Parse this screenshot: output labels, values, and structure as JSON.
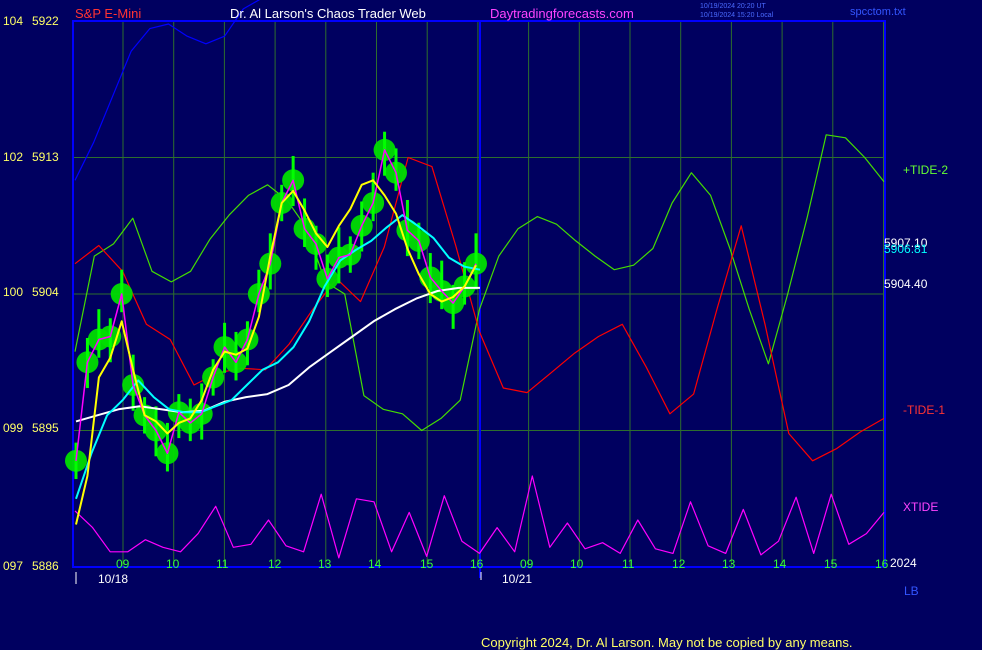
{
  "header": {
    "instrument": "S&P E-Mini",
    "title": "Dr. Al Larson's Chaos Trader Web",
    "site": "Daytradingforecasts.com",
    "stamp_ut": "10/19/2024 20:20 UT",
    "stamp_local": "10/19/2024 15:20 Local",
    "file": "spcctom.txt"
  },
  "footer": {
    "copyright": "Copyright 2024, Dr. Al Larson. May not be copied by any means."
  },
  "chart_data": {
    "type": "line",
    "y_left": [
      {
        "a": "104",
        "b": "5922"
      },
      {
        "a": "102",
        "b": "5913"
      },
      {
        "a": "100",
        "b": "5904"
      },
      {
        "a": "099",
        "b": "5895"
      },
      {
        "a": "097",
        "b": "5886"
      }
    ],
    "ylim": [
      5886,
      5922
    ],
    "x_ticks": [
      "09",
      "10",
      "11",
      "12",
      "13",
      "14",
      "15",
      "16",
      "09",
      "10",
      "11",
      "12",
      "13",
      "14",
      "15",
      "16"
    ],
    "date_labels": [
      "10/18",
      "10/21"
    ],
    "year_label": "2024",
    "right_values": [
      "5907.10",
      "5906.81",
      "5904.40"
    ],
    "series_labels": [
      "+TIDE-2",
      "-TIDE-1",
      "XTIDE"
    ],
    "corner_label": "LB",
    "colors": {
      "background": "#000060",
      "plot_border": "#0000ff",
      "grid": "#2d6e2d",
      "price_bars": "#00ff00",
      "price_bubbles": "#00dd00",
      "fast_ma": "#ffff00",
      "mid_ma": "#ff00ff",
      "cyan_ma": "#00ffff",
      "slow_ma": "#ffffff",
      "tide_plus": "#44dd00",
      "tide_minus": "#ff0000",
      "xtide": "#ff00ff",
      "blue_line": "#0000ff",
      "instrument_text": "#ff3333",
      "title_text": "#ffffff",
      "site_text": "#ff44ff",
      "footer_text": "#ffff66"
    },
    "price_close": [
      5893,
      5899.5,
      5901,
      5901.2,
      5904,
      5898,
      5896,
      5895,
      5893.5,
      5896.2,
      5895.5,
      5896.1,
      5898.5,
      5900.5,
      5899.5,
      5901,
      5904,
      5906,
      5910,
      5911.5,
      5908.3,
      5907.3,
      5905,
      5906.4,
      5906.6,
      5908.5,
      5910,
      5913.5,
      5912,
      5908.2,
      5907.5,
      5905.1,
      5904.2,
      5903.4,
      5904.5,
      5906
    ],
    "yellow_ma": [
      5888.8,
      5892,
      5898.5,
      5899.8,
      5902.2,
      5899,
      5896,
      5895.6,
      5894.8,
      5895.5,
      5895.8,
      5897,
      5899,
      5900.2,
      5900,
      5900.4,
      5902.5,
      5906.5,
      5910,
      5910.8,
      5909.5,
      5908,
      5907.1,
      5908.5,
      5909.6,
      5911.2,
      5911.5,
      5910.5,
      5909.3,
      5907,
      5905.3,
      5904,
      5903.5,
      5903.8,
      5904.5,
      5905.9
    ],
    "cyan_ma": [
      5890.5,
      5893.5,
      5896,
      5897,
      5898.3,
      5897.2,
      5896.4,
      5896.2,
      5896.2,
      5896.6,
      5897,
      5898,
      5899,
      5899.5,
      5900.5,
      5902.2,
      5904.5,
      5906.2,
      5906.9,
      5907.5,
      5908.4,
      5909.2,
      5908.5,
      5907.7,
      5906.4,
      5905.8,
      5905.6
    ],
    "white_ma": [
      5895.6,
      5896.0,
      5896.4,
      5896.6,
      5896.4,
      5896.2,
      5896.3,
      5896.9,
      5897.2,
      5897.4,
      5898.0,
      5899.2,
      5900.2,
      5901.2,
      5902.2,
      5903.0,
      5903.7,
      5904.2,
      5904.4,
      5904.4
    ],
    "tide_plus": [
      5900.2,
      5906.5,
      5907.3,
      5909,
      5905.5,
      5904.8,
      5905.5,
      5907.6,
      5909.2,
      5910.5,
      5911.2,
      5910.2,
      5908.4,
      5904.8,
      5904,
      5897.3,
      5896.4,
      5896.1,
      5895,
      5895.8,
      5897,
      5903,
      5906.5,
      5908.3,
      5909.1,
      5908.6,
      5907.5,
      5906.5,
      5905.6,
      5905.9,
      5907,
      5910,
      5912,
      5910.5,
      5907,
      5903,
      5899.4,
      5904,
      5909,
      5914.5,
      5914.3,
      5913,
      5911.4
    ],
    "tide_minus": [
      5906,
      5907.2,
      5905.5,
      5902,
      5901,
      5898,
      5898.8,
      5899.1,
      5899,
      5900.7,
      5903,
      5905,
      5903.5,
      5907.1,
      5913,
      5912.4,
      5907.2,
      5901.5,
      5897.8,
      5897.5,
      5898.8,
      5900.1,
      5901.2,
      5902,
      5899.2,
      5896.1,
      5897.4,
      5903.1,
      5908.5,
      5902,
      5894.8,
      5893,
      5893.8,
      5894.9,
      5895.8
    ],
    "xtide": [
      5889.7,
      5888.6,
      5887,
      5887,
      5887.8,
      5887.3,
      5887,
      5888.2,
      5890,
      5887.3,
      5887.5,
      5889.1,
      5887.4,
      5887,
      5890.8,
      5886.6,
      5890.5,
      5890.3,
      5887,
      5889.6,
      5886.7,
      5890.7,
      5887.7,
      5886.9,
      5888.6,
      5887,
      5892,
      5887.3,
      5888.9,
      5887.2,
      5887.6,
      5886.9,
      5889.1,
      5887.2,
      5886.9,
      5890.3,
      5887.4,
      5886.9,
      5889.8,
      5886.8,
      5887.7,
      5890.6,
      5886.9,
      5890.8,
      5887.5,
      5888.2,
      5889.6
    ],
    "blue_line": [
      5911.5,
      5914,
      5917,
      5920,
      5921.5,
      5921.8,
      5921,
      5920.5,
      5921,
      5922.8,
      5923.5
    ]
  }
}
